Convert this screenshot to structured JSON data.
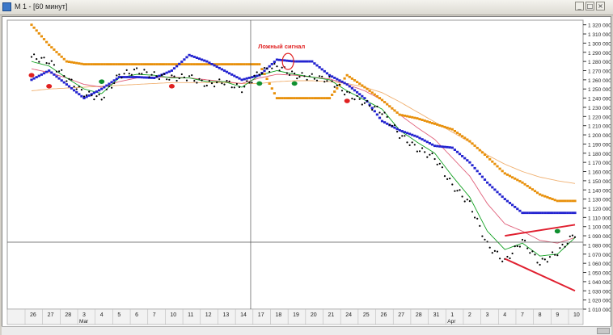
{
  "window": {
    "title": "М 1 - [60 минут]",
    "buttons": [
      "_",
      "□",
      "×"
    ]
  },
  "annotation": {
    "text": "Ложный сигнал",
    "color": "#e02020"
  },
  "colors": {
    "price": "#000000",
    "upper_channel": "#e8900a",
    "lower_channel": "#2323d0",
    "ma_fast": "#10a020",
    "ma_slow": "#e0607a",
    "ma_long": "#f0b070",
    "signal_red": "#e02020",
    "signal_green": "#109030",
    "trendline": "#e02030",
    "grid": "#c0c0c0"
  },
  "chart_data": {
    "type": "line",
    "xlabel": "",
    "ylabel": "",
    "ylim": [
      1010000,
      1325000
    ],
    "ytick_labels": [
      "1 010 000",
      "1 020 000",
      "1 030 000",
      "1 040 000",
      "1 050 000",
      "1 060 000",
      "1 070 000",
      "1 080 000",
      "1 090 000",
      "1 100 000",
      "1 110 000",
      "1 120 000",
      "1 130 000",
      "1 140 000",
      "1 150 000",
      "1 160 000",
      "1 170 000",
      "1 180 000",
      "1 190 000",
      "1 200 000",
      "1 210 000",
      "1 220 000",
      "1 230 000",
      "1 240 000",
      "1 250 000",
      "1 260 000",
      "1 270 000",
      "1 280 000",
      "1 290 000",
      "1 300 000",
      "1 310 000",
      "1 320 000"
    ],
    "day_labels": [
      "26",
      "27",
      "28",
      "3",
      "4",
      "5",
      "6",
      "7",
      "10",
      "11",
      "12",
      "13",
      "14",
      "17",
      "18",
      "19",
      "20",
      "21",
      "24",
      "25",
      "26",
      "27",
      "28",
      "31",
      "1",
      "2",
      "3",
      "4",
      "7",
      "8",
      "9",
      "10"
    ],
    "month_labels": [
      {
        "label": "Mar",
        "day_index": 3
      },
      {
        "label": "Apr",
        "day_index": 24
      }
    ],
    "series": [
      {
        "name": "price",
        "values": [
          1285000,
          1280000,
          1262000,
          1245000,
          1240000,
          1265000,
          1270000,
          1265000,
          1262000,
          1263000,
          1255000,
          1258000,
          1250000,
          1268000,
          1275000,
          1265000,
          1263000,
          1260000,
          1245000,
          1235000,
          1225000,
          1200000,
          1185000,
          1175000,
          1145000,
          1125000,
          1080000,
          1062000,
          1085000,
          1060000,
          1072000,
          1092000
        ]
      },
      {
        "name": "upper_channel",
        "values": [
          1320000,
          1298000,
          1280000,
          1277000,
          1277000,
          1277000,
          1277000,
          1277000,
          1277000,
          1277000,
          1277000,
          1277000,
          1277000,
          1277000,
          1240000,
          1240000,
          1240000,
          1240000,
          1265000,
          1252000,
          1238000,
          1222000,
          1218000,
          1212000,
          1206000,
          1193000,
          1176000,
          1158000,
          1148000,
          1135000,
          1128000,
          1128000
        ]
      },
      {
        "name": "lower_channel",
        "values": [
          1260000,
          1270000,
          1255000,
          1240000,
          1250000,
          1263000,
          1263000,
          1262000,
          1270000,
          1287000,
          1280000,
          1270000,
          1260000,
          1265000,
          1282000,
          1280000,
          1280000,
          1265000,
          1255000,
          1240000,
          1215000,
          1205000,
          1198000,
          1188000,
          1186000,
          1170000,
          1148000,
          1130000,
          1115000,
          1115000,
          1115000,
          1115000
        ]
      },
      {
        "name": "ma_fast",
        "values": [
          1280000,
          1275000,
          1262000,
          1250000,
          1245000,
          1262000,
          1266000,
          1265000,
          1262000,
          1262000,
          1258000,
          1258000,
          1252000,
          1265000,
          1270000,
          1266000,
          1263000,
          1260000,
          1248000,
          1238000,
          1228000,
          1205000,
          1192000,
          1180000,
          1155000,
          1132000,
          1095000,
          1075000,
          1082000,
          1068000,
          1070000,
          1088000
        ]
      },
      {
        "name": "ma_slow",
        "values": [
          1272000,
          1268000,
          1262000,
          1255000,
          1252000,
          1258000,
          1262000,
          1263000,
          1263000,
          1262000,
          1260000,
          1258000,
          1256000,
          1262000,
          1266000,
          1265000,
          1263000,
          1261000,
          1255000,
          1248000,
          1238000,
          1222000,
          1208000,
          1195000,
          1175000,
          1155000,
          1125000,
          1103000,
          1095000,
          1085000,
          1082000,
          1088000
        ]
      },
      {
        "name": "ma_long",
        "values": [
          1248000,
          1250000,
          1251000,
          1252000,
          1253000,
          1254000,
          1255000,
          1256000,
          1257000,
          1257000,
          1257000,
          1257000,
          1256000,
          1256000,
          1258000,
          1259000,
          1259000,
          1258000,
          1256000,
          1252000,
          1246000,
          1236000,
          1225000,
          1214000,
          1203000,
          1192000,
          1178000,
          1168000,
          1160000,
          1154000,
          1150000,
          1147000
        ]
      }
    ],
    "signals": [
      {
        "type": "red",
        "day_index": 0,
        "y": 1265000
      },
      {
        "type": "red",
        "day_index": 1,
        "y": 1253000
      },
      {
        "type": "green",
        "day_index": 4,
        "y": 1258000
      },
      {
        "type": "red",
        "day_index": 8,
        "y": 1253000
      },
      {
        "type": "green",
        "day_index": 13,
        "y": 1256000
      },
      {
        "type": "green",
        "day_index": 15,
        "y": 1256000
      },
      {
        "type": "red",
        "day_index": 18,
        "y": 1237000
      },
      {
        "type": "green",
        "day_index": 30,
        "y": 1095000
      }
    ],
    "trendlines": [
      {
        "from": [
          27,
          1090000
        ],
        "to": [
          31,
          1102000
        ]
      },
      {
        "from": [
          27,
          1065000
        ],
        "to": [
          31,
          1030000
        ]
      }
    ],
    "crosshair": {
      "day_index": 12.5,
      "y": 1083000
    },
    "grid": false,
    "legend": "none"
  }
}
